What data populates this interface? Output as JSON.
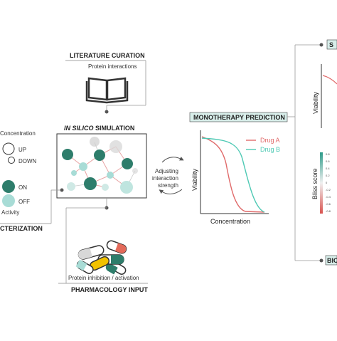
{
  "literature": {
    "title": "LITERATURE CURATION",
    "subtitle": "Protein interactions",
    "icon": "open-book-icon"
  },
  "simulation": {
    "title_italic": "IN SILICO",
    "title_rest": " SIMULATION"
  },
  "legend": {
    "concentration": "Concentration",
    "up": "UP",
    "down": "DOWN",
    "on": "ON",
    "off": "OFF",
    "activity": "Activity",
    "characterization": "CTERIZATION",
    "on_color": "#2e7d6b",
    "off_color": "#a8dcd6"
  },
  "adjusting": {
    "line1": "Adjusting",
    "line2": "interaction",
    "line3": "strength",
    "icon": "cycle-arrows-icon"
  },
  "monotherapy": {
    "title": "MONOTHERAPY PREDICTION",
    "xlabel": "Concentration",
    "ylabel": "Viability",
    "drug_a": "Drug A",
    "drug_b": "Drug B",
    "drug_a_color": "#e06a6a",
    "drug_b_color": "#4ec9b4"
  },
  "pharmacology": {
    "title": "PHARMACOLOGY INPUT",
    "subtitle": "Protein inhibition / activation",
    "icon": "capsules-icon"
  },
  "right_panel": {
    "top_letter": "S",
    "viability": "Viability",
    "bliss": "Bliss score",
    "scale": [
      "0.8",
      "0.6",
      "0.4",
      "0.2",
      "0",
      "-0.2",
      "-0.4",
      "-0.6",
      "-0.8"
    ],
    "bio_label": "BIO"
  }
}
